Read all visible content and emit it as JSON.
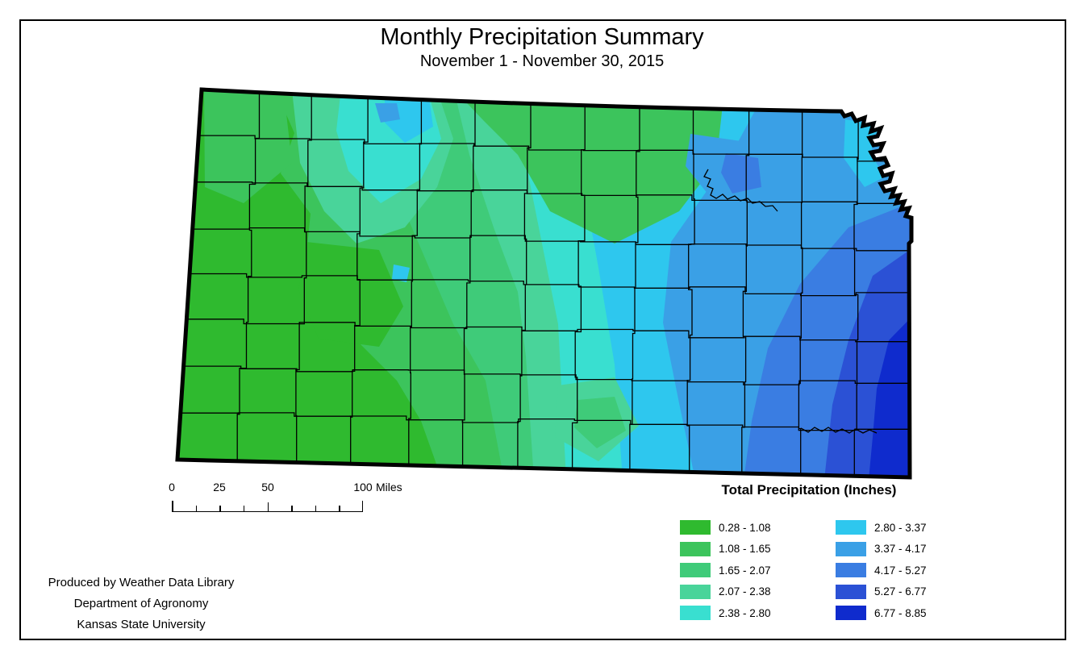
{
  "title": "Monthly Precipitation Summary",
  "subtitle": "November 1 - November 30, 2015",
  "map": {
    "region": "Kansas",
    "description": "Interpolated total precipitation surface with county boundaries"
  },
  "scalebar": {
    "labels": [
      "0",
      "25",
      "50",
      "100"
    ],
    "unit": "Miles"
  },
  "legend": {
    "title": "Total Precipitation (Inches)",
    "items": [
      {
        "range": "0.28 - 1.08",
        "color": "#2fba2f"
      },
      {
        "range": "1.08 - 1.65",
        "color": "#3cc45c"
      },
      {
        "range": "1.65 - 2.07",
        "color": "#3fcb79"
      },
      {
        "range": "2.07 - 2.38",
        "color": "#49d49a"
      },
      {
        "range": "2.38 - 2.80",
        "color": "#39dfd0"
      },
      {
        "range": "2.80 - 3.37",
        "color": "#2ec7ee"
      },
      {
        "range": "3.37 - 4.17",
        "color": "#3aa0e6"
      },
      {
        "range": "4.17 - 5.27",
        "color": "#3a7de2"
      },
      {
        "range": "5.27 - 6.77",
        "color": "#2b51d5"
      },
      {
        "range": "6.77 - 8.85",
        "color": "#0f2bcd"
      }
    ]
  },
  "credits": {
    "lines": [
      "Produced by Weather Data Library",
      "Department of Agronomy",
      "Kansas State University"
    ]
  }
}
